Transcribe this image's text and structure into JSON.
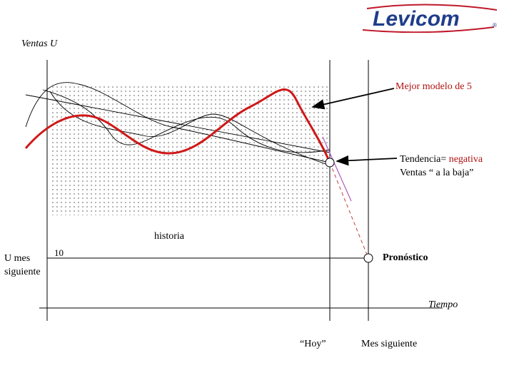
{
  "logo": {
    "text": "Levicom",
    "registered": "®",
    "color": "#1f3d8a",
    "swoosh_color": "#c0182a"
  },
  "labels": {
    "y_axis": "Ventas U",
    "x_axis": "Tiempo",
    "history": "historia",
    "best_model": "Mejor modelo de 5",
    "trend_label": "Tendencia=",
    "trend_value": " negativa",
    "sales_down": "Ventas “ a la baja”",
    "forecast": "Pronóstico",
    "units_line1": "U mes",
    "units_line2": "siguiente",
    "units_value": "10",
    "today": "“Hoy”",
    "next_month": "Mes siguiente"
  },
  "colors": {
    "best_model_curve": "#d01818",
    "forecast_line": "#c04040",
    "trend_line": "#b05cc0",
    "dots": "#555555",
    "lines": "#000000"
  }
}
